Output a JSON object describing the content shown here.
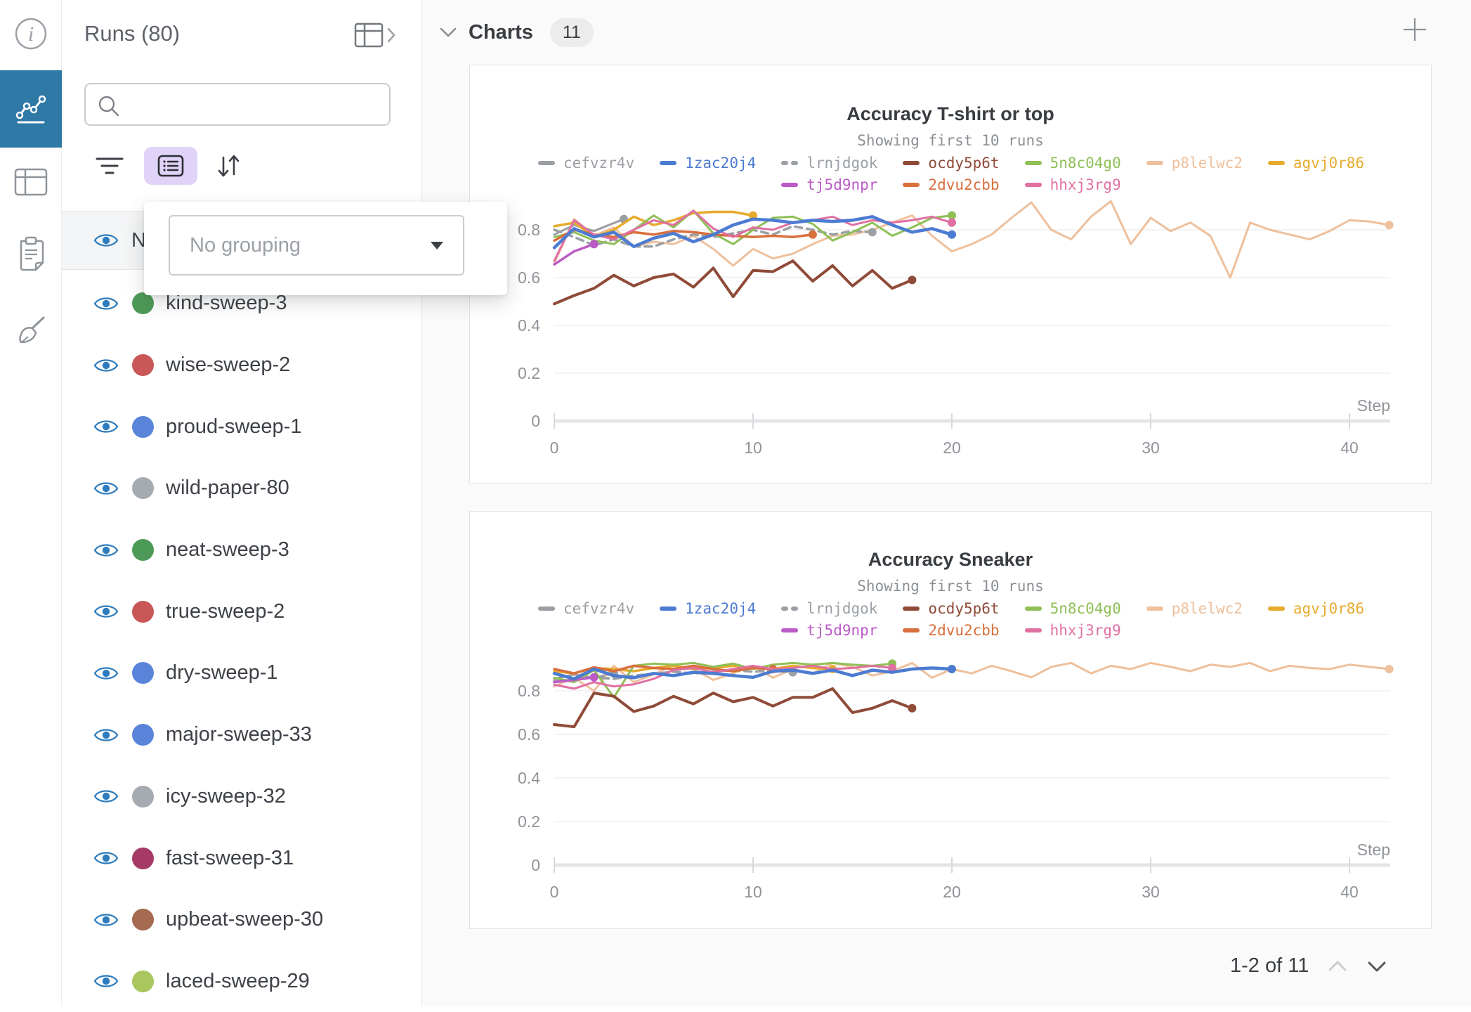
{
  "sidebar": {
    "items": [
      {
        "id": "info",
        "active": false
      },
      {
        "id": "charts",
        "active": true
      },
      {
        "id": "tables",
        "active": false
      },
      {
        "id": "notes",
        "active": false
      },
      {
        "id": "cleanup",
        "active": false
      }
    ]
  },
  "runs_panel": {
    "title": "Runs (80)",
    "search": {
      "value": "",
      "placeholder": ""
    },
    "name_column_header": "Name",
    "grouping_dropdown": {
      "value": "No grouping"
    },
    "runs": [
      {
        "name": "kind-sweep-3",
        "color": "#4d9a58"
      },
      {
        "name": "wise-sweep-2",
        "color": "#c95757"
      },
      {
        "name": "proud-sweep-1",
        "color": "#5984d9"
      },
      {
        "name": "wild-paper-80",
        "color": "#a6abb1"
      },
      {
        "name": "neat-sweep-3",
        "color": "#4d9a58"
      },
      {
        "name": "true-sweep-2",
        "color": "#c95757"
      },
      {
        "name": "dry-sweep-1",
        "color": "#5984d9"
      },
      {
        "name": "major-sweep-33",
        "color": "#5984d9"
      },
      {
        "name": "icy-sweep-32",
        "color": "#a6abb1"
      },
      {
        "name": "fast-sweep-31",
        "color": "#a43a65"
      },
      {
        "name": "upbeat-sweep-30",
        "color": "#a56a4f"
      },
      {
        "name": "laced-sweep-29",
        "color": "#a9c75e"
      }
    ]
  },
  "charts_section": {
    "title": "Charts",
    "count": "11",
    "pagination": {
      "label": "1-2 of 11"
    }
  },
  "chart_data": [
    {
      "type": "line",
      "title": "Accuracy T-shirt or top",
      "subtitle": "Showing first 10 runs",
      "xlabel": "Step",
      "xticks": [
        0,
        10,
        20,
        30,
        40
      ],
      "yticks": [
        0,
        0.2,
        0.4,
        0.6,
        0.8
      ],
      "ylim": [
        0,
        1
      ],
      "grid": true,
      "legend_position": "top",
      "series": [
        {
          "name": "cefvzr4v",
          "color": "#9a9ea3",
          "lw": 3,
          "z": 1,
          "dash": false,
          "x": [
            0,
            1,
            2,
            3.5
          ],
          "y": [
            0.78,
            0.82,
            0.795,
            0.845
          ]
        },
        {
          "name": "1zac20j4",
          "color": "#4c7bd2",
          "lw": 4.5,
          "z": 10,
          "dash": false,
          "x": [
            0,
            1,
            2,
            3,
            4,
            5,
            6,
            7,
            8,
            9,
            10,
            11,
            12,
            13,
            14,
            15,
            16,
            17,
            18,
            19,
            20
          ],
          "y": [
            0.725,
            0.805,
            0.77,
            0.79,
            0.73,
            0.765,
            0.785,
            0.75,
            0.78,
            0.82,
            0.845,
            0.84,
            0.83,
            0.84,
            0.835,
            0.84,
            0.855,
            0.82,
            0.79,
            0.805,
            0.78
          ]
        },
        {
          "name": "lrnjdgok",
          "color": "#9aa0a6",
          "lw": 3.5,
          "z": 3,
          "dash": true,
          "x": [
            0,
            1,
            2,
            3,
            4,
            5,
            6,
            7,
            8,
            9,
            10,
            11,
            12,
            13,
            14,
            15,
            16
          ],
          "y": [
            0.8,
            0.77,
            0.735,
            0.76,
            0.73,
            0.73,
            0.76,
            0.78,
            0.77,
            0.785,
            0.8,
            0.78,
            0.815,
            0.8,
            0.78,
            0.795,
            0.79
          ]
        },
        {
          "name": "ocdy5p6t",
          "color": "#8f4b38",
          "lw": 4,
          "z": 9,
          "dash": false,
          "x": [
            0,
            1,
            2,
            3,
            4,
            5,
            6,
            7,
            8,
            9,
            10,
            11,
            12,
            13,
            14,
            15,
            16,
            17,
            18
          ],
          "y": [
            0.49,
            0.525,
            0.555,
            0.61,
            0.565,
            0.6,
            0.615,
            0.56,
            0.64,
            0.52,
            0.63,
            0.625,
            0.67,
            0.585,
            0.65,
            0.565,
            0.63,
            0.555,
            0.59
          ]
        },
        {
          "name": "5n8c04g0",
          "color": "#8fbf56",
          "lw": 3,
          "z": 5,
          "dash": false,
          "x": [
            0,
            1,
            2,
            3,
            4,
            5,
            6,
            7,
            8,
            9,
            10,
            11,
            12,
            13,
            14,
            15,
            16,
            17,
            18,
            19,
            20
          ],
          "y": [
            0.77,
            0.79,
            0.755,
            0.74,
            0.8,
            0.86,
            0.81,
            0.88,
            0.785,
            0.74,
            0.8,
            0.85,
            0.855,
            0.825,
            0.755,
            0.79,
            0.83,
            0.775,
            0.81,
            0.85,
            0.86
          ]
        },
        {
          "name": "p8lelwc2",
          "color": "#eec09c",
          "lw": 3,
          "z": 2,
          "dash": false,
          "x": [
            0,
            1,
            2,
            3,
            4,
            5,
            6,
            7,
            8,
            9,
            10,
            11,
            12,
            13,
            14,
            15,
            16,
            17,
            18,
            19,
            20,
            21,
            22,
            23,
            24,
            25,
            26,
            27,
            28,
            29,
            30,
            31,
            32,
            33,
            34,
            35,
            36,
            37,
            38,
            39,
            40,
            41,
            42
          ],
          "y": [
            0.66,
            0.845,
            0.775,
            0.81,
            0.73,
            0.75,
            0.74,
            0.775,
            0.72,
            0.65,
            0.72,
            0.68,
            0.7,
            0.74,
            0.775,
            0.78,
            0.8,
            0.83,
            0.86,
            0.775,
            0.71,
            0.74,
            0.78,
            0.85,
            0.915,
            0.8,
            0.76,
            0.855,
            0.92,
            0.74,
            0.85,
            0.795,
            0.83,
            0.775,
            0.6,
            0.83,
            0.8,
            0.78,
            0.76,
            0.795,
            0.84,
            0.835,
            0.82
          ]
        },
        {
          "name": "agvj0r86",
          "color": "#e6ab2e",
          "lw": 3.5,
          "z": 4,
          "dash": false,
          "x": [
            0,
            1,
            2,
            3,
            4,
            5,
            6,
            7,
            8,
            9,
            10
          ],
          "y": [
            0.815,
            0.83,
            0.77,
            0.8,
            0.855,
            0.82,
            0.84,
            0.87,
            0.875,
            0.875,
            0.86
          ]
        },
        {
          "name": "tj5d9npr",
          "color": "#bb5bc6",
          "lw": 3.5,
          "z": 8,
          "dash": false,
          "x": [
            0,
            1,
            2
          ],
          "y": [
            0.655,
            0.71,
            0.74
          ]
        },
        {
          "name": "2dvu2cbb",
          "color": "#d96f3d",
          "lw": 3.5,
          "z": 6,
          "dash": false,
          "x": [
            0,
            1,
            2,
            3,
            4,
            5,
            6,
            7,
            8,
            9,
            10,
            11,
            12,
            13
          ],
          "y": [
            0.755,
            0.8,
            0.78,
            0.77,
            0.79,
            0.78,
            0.795,
            0.79,
            0.78,
            0.775,
            0.77,
            0.775,
            0.77,
            0.78
          ]
        },
        {
          "name": "hhxj3rg9",
          "color": "#e06fa2",
          "lw": 3,
          "z": 7,
          "dash": false,
          "x": [
            0,
            1,
            2,
            3,
            4,
            5,
            6,
            7,
            8,
            9,
            10,
            11,
            12,
            13,
            14,
            15,
            16,
            17,
            18,
            19,
            20
          ],
          "y": [
            0.67,
            0.84,
            0.78,
            0.76,
            0.8,
            0.84,
            0.82,
            0.88,
            0.805,
            0.77,
            0.81,
            0.8,
            0.83,
            0.84,
            0.855,
            0.82,
            0.84,
            0.83,
            0.84,
            0.855,
            0.83
          ]
        }
      ]
    },
    {
      "type": "line",
      "title": "Accuracy Sneaker",
      "subtitle": "Showing first 10 runs",
      "xlabel": "Step",
      "xticks": [
        0,
        10,
        20,
        30,
        40
      ],
      "yticks": [
        0,
        0.2,
        0.4,
        0.6,
        0.8
      ],
      "ylim": [
        0,
        1
      ],
      "grid": true,
      "legend_position": "top",
      "series": [
        {
          "name": "cefvzr4v",
          "color": "#9a9ea3",
          "lw": 3,
          "z": 1,
          "dash": false,
          "x": [
            0,
            1,
            2,
            3
          ],
          "y": [
            0.855,
            0.875,
            0.86,
            0.88
          ]
        },
        {
          "name": "1zac20j4",
          "color": "#4c7bd2",
          "lw": 4.5,
          "z": 10,
          "dash": false,
          "x": [
            0,
            1,
            2,
            3,
            4,
            5,
            6,
            7,
            8,
            9,
            10,
            11,
            12,
            13,
            14,
            15,
            16,
            17,
            18,
            19,
            20
          ],
          "y": [
            0.88,
            0.855,
            0.9,
            0.87,
            0.86,
            0.88,
            0.87,
            0.885,
            0.88,
            0.87,
            0.862,
            0.89,
            0.895,
            0.88,
            0.895,
            0.87,
            0.895,
            0.885,
            0.9,
            0.905,
            0.9
          ]
        },
        {
          "name": "lrnjdgok",
          "color": "#9aa0a6",
          "lw": 3.5,
          "z": 3,
          "dash": true,
          "x": [
            0,
            1,
            2,
            3,
            4,
            5,
            6,
            7,
            8,
            9,
            10,
            11,
            12
          ],
          "y": [
            0.845,
            0.85,
            0.862,
            0.855,
            0.87,
            0.878,
            0.888,
            0.88,
            0.888,
            0.895,
            0.888,
            0.893,
            0.885
          ]
        },
        {
          "name": "ocdy5p6t",
          "color": "#8f4b38",
          "lw": 4,
          "z": 9,
          "dash": false,
          "x": [
            0,
            1,
            2,
            3,
            4,
            5,
            6,
            7,
            8,
            9,
            10,
            11,
            12,
            13,
            14,
            15,
            16,
            17,
            18
          ],
          "y": [
            0.645,
            0.635,
            0.79,
            0.775,
            0.705,
            0.73,
            0.775,
            0.74,
            0.79,
            0.75,
            0.77,
            0.73,
            0.77,
            0.77,
            0.81,
            0.7,
            0.72,
            0.755,
            0.72
          ]
        },
        {
          "name": "5n8c04g0",
          "color": "#8fbf56",
          "lw": 3,
          "z": 5,
          "dash": false,
          "x": [
            0,
            1,
            2,
            3,
            4,
            5,
            6,
            7,
            8,
            9,
            10,
            11,
            12,
            13,
            14,
            15,
            16,
            17
          ],
          "y": [
            0.86,
            0.84,
            0.895,
            0.77,
            0.915,
            0.925,
            0.92,
            0.928,
            0.91,
            0.925,
            0.9,
            0.92,
            0.928,
            0.92,
            0.928,
            0.92,
            0.915,
            0.925
          ]
        },
        {
          "name": "p8lelwc2",
          "color": "#eec09c",
          "lw": 3,
          "z": 2,
          "dash": false,
          "x": [
            0,
            1,
            2,
            3,
            4,
            5,
            6,
            7,
            8,
            9,
            10,
            11,
            12,
            13,
            14,
            15,
            16,
            17,
            18,
            19,
            20,
            21,
            22,
            23,
            24,
            25,
            26,
            27,
            28,
            29,
            30,
            31,
            32,
            33,
            34,
            35,
            36,
            37,
            38,
            39,
            40,
            41,
            42
          ],
          "y": [
            0.82,
            0.86,
            0.8,
            0.915,
            0.84,
            0.875,
            0.92,
            0.9,
            0.85,
            0.88,
            0.915,
            0.86,
            0.9,
            0.88,
            0.928,
            0.91,
            0.87,
            0.89,
            0.928,
            0.86,
            0.9,
            0.88,
            0.915,
            0.89,
            0.862,
            0.91,
            0.928,
            0.88,
            0.915,
            0.9,
            0.928,
            0.91,
            0.89,
            0.92,
            0.91,
            0.928,
            0.89,
            0.915,
            0.905,
            0.9,
            0.92,
            0.91,
            0.9
          ]
        },
        {
          "name": "agvj0r86",
          "color": "#e6ab2e",
          "lw": 3.5,
          "z": 4,
          "dash": false,
          "x": [
            0,
            1,
            2,
            3,
            4,
            5,
            6,
            7,
            8,
            9,
            10,
            11,
            12,
            13,
            14
          ],
          "y": [
            0.89,
            0.88,
            0.905,
            0.9,
            0.89,
            0.905,
            0.915,
            0.9,
            0.905,
            0.915,
            0.905,
            0.9,
            0.915,
            0.905,
            0.9
          ]
        },
        {
          "name": "tj5d9npr",
          "color": "#bb5bc6",
          "lw": 3.5,
          "z": 8,
          "dash": false,
          "x": [
            0,
            1,
            2
          ],
          "y": [
            0.84,
            0.85,
            0.862
          ]
        },
        {
          "name": "2dvu2cbb",
          "color": "#d96f3d",
          "lw": 3.5,
          "z": 6,
          "dash": false,
          "x": [
            0,
            1,
            2,
            3,
            4,
            5,
            6,
            7,
            8,
            9,
            10,
            11
          ],
          "y": [
            0.9,
            0.88,
            0.908,
            0.89,
            0.915,
            0.905,
            0.9,
            0.915,
            0.9,
            0.89,
            0.905,
            0.9
          ]
        },
        {
          "name": "hhxj3rg9",
          "color": "#e06fa2",
          "lw": 3,
          "z": 7,
          "dash": false,
          "x": [
            0,
            1,
            2,
            3,
            4,
            5,
            6,
            7,
            8,
            9,
            10,
            11,
            12,
            13,
            14,
            15,
            16,
            17
          ],
          "y": [
            0.828,
            0.81,
            0.84,
            0.82,
            0.83,
            0.855,
            0.895,
            0.905,
            0.885,
            0.9,
            0.915,
            0.9,
            0.905,
            0.915,
            0.9,
            0.905,
            0.915,
            0.905
          ]
        }
      ]
    }
  ]
}
